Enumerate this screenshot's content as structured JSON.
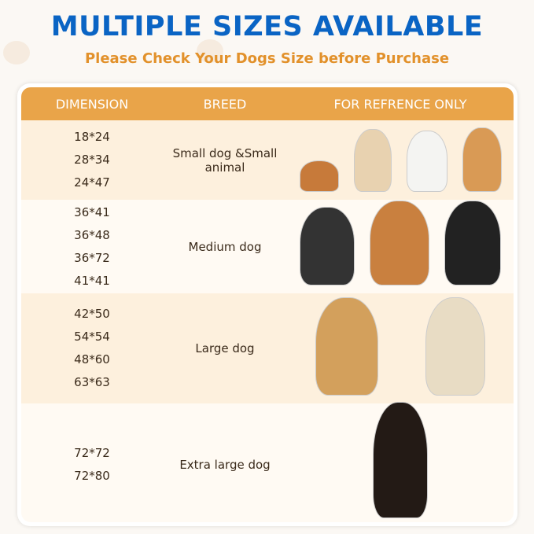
{
  "title": "MULTIPLE SIZES AVAILABLE",
  "subtitle": "Please Check Your Dogs Size before Purchase",
  "colors": {
    "title": "#0a64c4",
    "subtitle": "#e2912b",
    "header": "#e9a449"
  },
  "table": {
    "headers": [
      "DIMENSION",
      "BREED",
      "FOR REFRENCE ONLY"
    ],
    "rows": [
      {
        "dimensions": [
          "18*24",
          "28*34",
          "24*47"
        ],
        "breed": "Small dog &Small animal",
        "images": [
          "guinea-pig",
          "chihuahua",
          "bichon-frise",
          "corgi"
        ]
      },
      {
        "dimensions": [
          "36*41",
          "36*48",
          "36*72",
          "41*41"
        ],
        "breed": "Medium dog",
        "images": [
          "french-bulldog",
          "shiba-inu",
          "border-collie"
        ]
      },
      {
        "dimensions": [
          "42*50",
          "54*54",
          "48*60",
          "63*63"
        ],
        "breed": "Large dog",
        "images": [
          "golden-retriever",
          "labrador"
        ]
      },
      {
        "dimensions": [
          "72*72",
          "72*80"
        ],
        "breed": "Extra large dog",
        "images": [
          "doberman"
        ]
      }
    ]
  }
}
